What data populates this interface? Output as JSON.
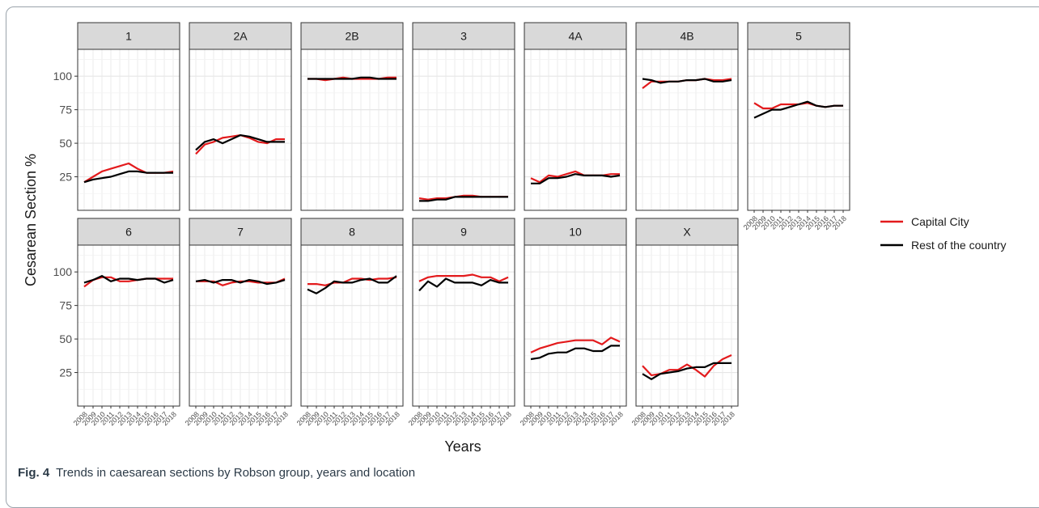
{
  "caption": {
    "label": "Fig. 4",
    "text": "Trends in caesarean sections by Robson group, years and location"
  },
  "chart_data": {
    "type": "line",
    "xlabel": "Years",
    "ylabel": "Cesarean Section %",
    "x": [
      2008,
      2009,
      2010,
      2011,
      2012,
      2013,
      2014,
      2015,
      2016,
      2017,
      2018
    ],
    "ylim": [
      0,
      120
    ],
    "yticks": [
      25,
      50,
      75,
      100
    ],
    "grid": true,
    "legend_position": "right",
    "series_meta": [
      {
        "name": "Capital City",
        "color": "#e31a1c"
      },
      {
        "name": "Rest of the country",
        "color": "#000000"
      }
    ],
    "panels": [
      {
        "label": "1",
        "series": [
          {
            "name": "Capital City",
            "values": [
              21,
              25,
              29,
              31,
              33,
              35,
              31,
              28,
              28,
              28,
              29
            ]
          },
          {
            "name": "Rest of the country",
            "values": [
              21,
              23,
              24,
              25,
              27,
              29,
              29,
              28,
              28,
              28,
              28
            ]
          }
        ]
      },
      {
        "label": "2A",
        "series": [
          {
            "name": "Capital City",
            "values": [
              42,
              49,
              51,
              54,
              55,
              56,
              54,
              51,
              50,
              53,
              53
            ]
          },
          {
            "name": "Rest of the country",
            "values": [
              45,
              51,
              53,
              50,
              53,
              56,
              55,
              53,
              51,
              51,
              51
            ]
          }
        ]
      },
      {
        "label": "2B",
        "series": [
          {
            "name": "Capital City",
            "values": [
              98,
              98,
              97,
              98,
              99,
              98,
              98,
              98,
              98,
              99,
              99
            ]
          },
          {
            "name": "Rest of the country",
            "values": [
              98,
              98,
              98,
              98,
              98,
              98,
              99,
              99,
              98,
              98,
              98
            ]
          }
        ]
      },
      {
        "label": "3",
        "series": [
          {
            "name": "Capital City",
            "values": [
              9,
              8,
              9,
              9,
              10,
              11,
              11,
              10,
              10,
              10,
              10
            ]
          },
          {
            "name": "Rest of the country",
            "values": [
              7,
              7,
              8,
              8,
              10,
              10,
              10,
              10,
              10,
              10,
              10
            ]
          }
        ]
      },
      {
        "label": "4A",
        "series": [
          {
            "name": "Capital City",
            "values": [
              24,
              21,
              26,
              25,
              27,
              29,
              26,
              26,
              26,
              27,
              27
            ]
          },
          {
            "name": "Rest of the country",
            "values": [
              20,
              20,
              24,
              24,
              25,
              27,
              26,
              26,
              26,
              25,
              26
            ]
          }
        ]
      },
      {
        "label": "4B",
        "series": [
          {
            "name": "Capital City",
            "values": [
              91,
              96,
              96,
              96,
              96,
              97,
              97,
              98,
              97,
              97,
              98
            ]
          },
          {
            "name": "Rest of the country",
            "values": [
              98,
              97,
              95,
              96,
              96,
              97,
              97,
              98,
              96,
              96,
              97
            ]
          }
        ]
      },
      {
        "label": "5",
        "series": [
          {
            "name": "Capital City",
            "values": [
              80,
              76,
              76,
              79,
              79,
              79,
              80,
              78,
              77,
              78,
              78
            ]
          },
          {
            "name": "Rest of the country",
            "values": [
              69,
              72,
              75,
              75,
              77,
              79,
              81,
              78,
              77,
              78,
              78
            ]
          }
        ]
      },
      {
        "label": "6",
        "series": [
          {
            "name": "Capital City",
            "values": [
              89,
              94,
              96,
              96,
              93,
              93,
              94,
              95,
              95,
              95,
              95
            ]
          },
          {
            "name": "Rest of the country",
            "values": [
              92,
              94,
              97,
              93,
              95,
              95,
              94,
              95,
              95,
              92,
              94
            ]
          }
        ]
      },
      {
        "label": "7",
        "series": [
          {
            "name": "Capital City",
            "values": [
              93,
              93,
              93,
              90,
              92,
              93,
              93,
              92,
              92,
              92,
              95
            ]
          },
          {
            "name": "Rest of the country",
            "values": [
              93,
              94,
              92,
              94,
              94,
              92,
              94,
              93,
              91,
              92,
              94
            ]
          }
        ]
      },
      {
        "label": "8",
        "series": [
          {
            "name": "Capital City",
            "values": [
              91,
              91,
              90,
              92,
              92,
              95,
              95,
              94,
              95,
              95,
              96
            ]
          },
          {
            "name": "Rest of the country",
            "values": [
              87,
              84,
              88,
              93,
              92,
              92,
              94,
              95,
              92,
              92,
              97
            ]
          }
        ]
      },
      {
        "label": "9",
        "series": [
          {
            "name": "Capital City",
            "values": [
              93,
              96,
              97,
              97,
              97,
              97,
              98,
              96,
              96,
              93,
              96
            ]
          },
          {
            "name": "Rest of the country",
            "values": [
              86,
              93,
              89,
              95,
              92,
              92,
              92,
              90,
              94,
              92,
              92
            ]
          }
        ]
      },
      {
        "label": "10",
        "series": [
          {
            "name": "Capital City",
            "values": [
              40,
              43,
              45,
              47,
              48,
              49,
              49,
              49,
              46,
              51,
              48
            ]
          },
          {
            "name": "Rest of the country",
            "values": [
              35,
              36,
              39,
              40,
              40,
              43,
              43,
              41,
              41,
              45,
              45
            ]
          }
        ]
      },
      {
        "label": "X",
        "series": [
          {
            "name": "Capital City",
            "values": [
              30,
              23,
              24,
              27,
              27,
              31,
              27,
              22,
              30,
              35,
              38
            ]
          },
          {
            "name": "Rest of the country",
            "values": [
              24,
              20,
              24,
              25,
              26,
              28,
              29,
              29,
              32,
              32,
              32
            ]
          }
        ]
      }
    ]
  }
}
